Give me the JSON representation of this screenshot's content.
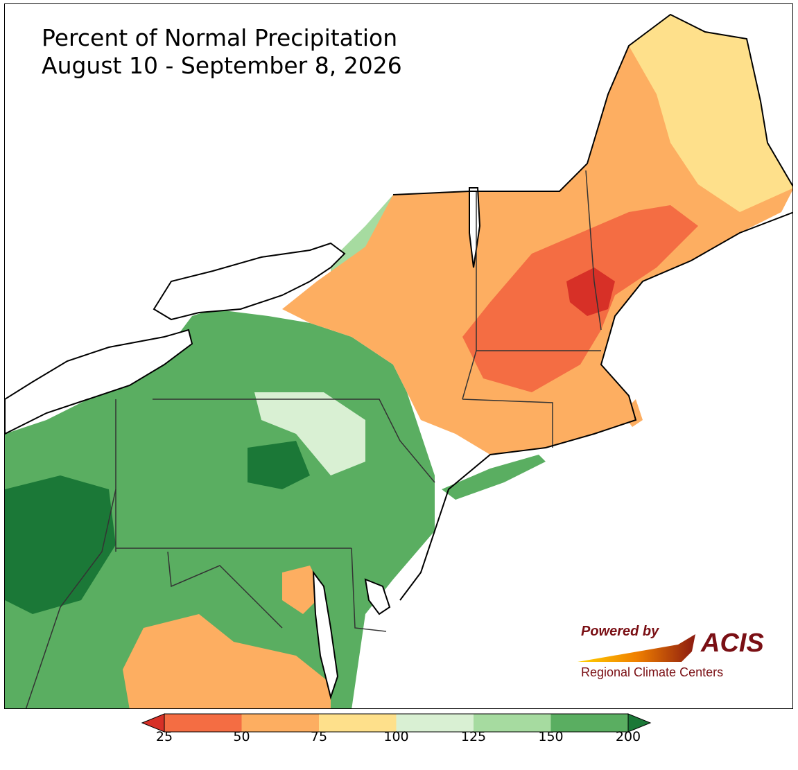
{
  "title": {
    "line1": "Percent of Normal Precipitation",
    "line2": "August 10 - September 8, 2026"
  },
  "logo": {
    "powered_by": "Powered by",
    "name": "ACIS",
    "subtitle": "Regional Climate Centers",
    "color": "#7a0f14"
  },
  "legend": {
    "ticks": [
      "25",
      "50",
      "75",
      "100",
      "125",
      "150",
      "200"
    ],
    "bins": [
      {
        "range": "<25",
        "color": "#d73027"
      },
      {
        "range": "25-50",
        "color": "#f46d43"
      },
      {
        "range": "50-75",
        "color": "#fdae61"
      },
      {
        "range": "75-100",
        "color": "#fee08b"
      },
      {
        "range": "100-125",
        "color": "#d9f0d3"
      },
      {
        "range": "125-150",
        "color": "#a6dba0"
      },
      {
        "range": "150-200",
        "color": "#5aae61"
      },
      {
        "range": ">200",
        "color": "#1b7837"
      }
    ]
  }
}
